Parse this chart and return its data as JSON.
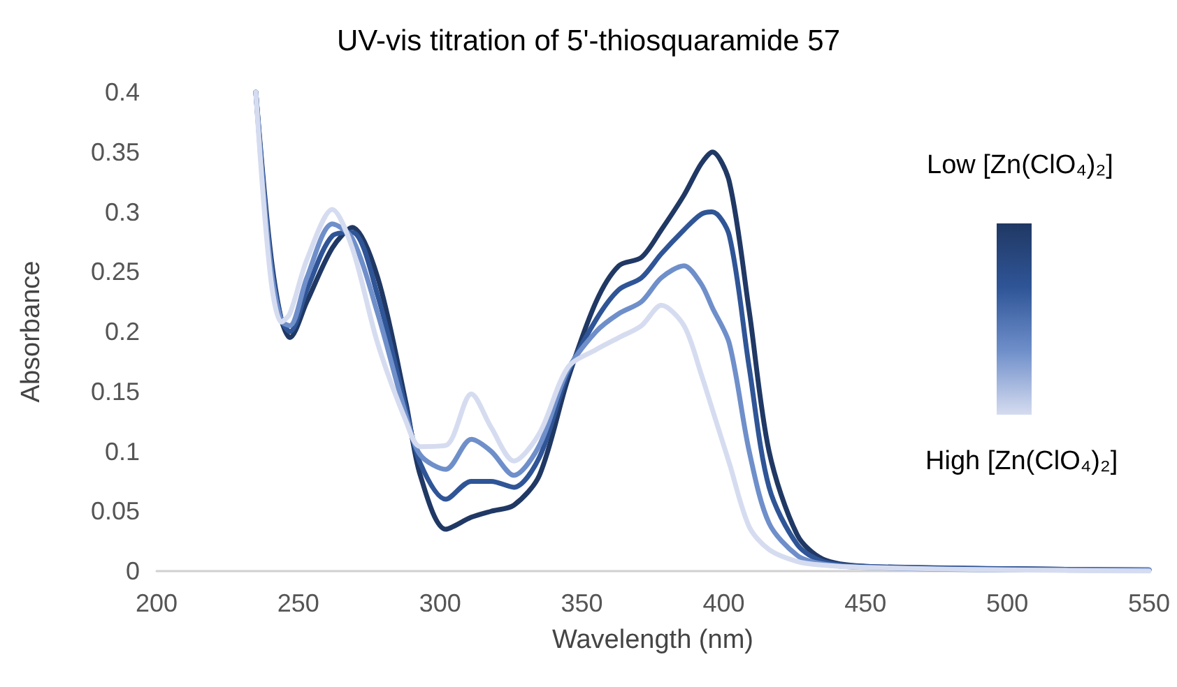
{
  "chart_data": {
    "type": "line",
    "title": "UV-vis titration of 5'-thiosquaramide 57",
    "xlabel": "Wavelength (nm)",
    "ylabel": "Absorbance",
    "x": [
      235,
      240,
      244,
      247,
      253,
      262,
      269,
      278,
      288,
      293,
      302,
      311,
      318,
      326,
      335,
      345,
      355,
      363,
      371,
      378,
      386,
      392,
      396,
      402,
      409,
      416,
      426,
      435,
      450,
      500,
      550
    ],
    "series": [
      {
        "color": "#203864",
        "values": [
          0.4,
          0.27,
          0.21,
          0.195,
          0.225,
          0.27,
          0.287,
          0.245,
          0.14,
          0.08,
          0.035,
          0.045,
          0.05,
          0.055,
          0.08,
          0.16,
          0.225,
          0.255,
          0.262,
          0.285,
          0.314,
          0.34,
          0.35,
          0.325,
          0.217,
          0.1,
          0.03,
          0.01,
          0.004,
          0.002,
          0.001
        ]
      },
      {
        "color": "#2f5597",
        "values": [
          0.4,
          0.265,
          0.21,
          0.2,
          0.235,
          0.28,
          0.283,
          0.23,
          0.135,
          0.09,
          0.06,
          0.075,
          0.075,
          0.07,
          0.095,
          0.165,
          0.21,
          0.235,
          0.245,
          0.265,
          0.285,
          0.298,
          0.3,
          0.28,
          0.17,
          0.07,
          0.022,
          0.008,
          0.004,
          0.002,
          0.001
        ]
      },
      {
        "color": "#6f8fca",
        "values": [
          0.4,
          0.26,
          0.209,
          0.205,
          0.245,
          0.29,
          0.278,
          0.215,
          0.13,
          0.097,
          0.085,
          0.11,
          0.1,
          0.08,
          0.105,
          0.168,
          0.2,
          0.215,
          0.225,
          0.245,
          0.255,
          0.24,
          0.22,
          0.19,
          0.1,
          0.04,
          0.013,
          0.006,
          0.003,
          0.001,
          0.001
        ]
      },
      {
        "color": "#d6dcf0",
        "values": [
          0.4,
          0.25,
          0.208,
          0.215,
          0.26,
          0.302,
          0.27,
          0.19,
          0.125,
          0.104,
          0.105,
          0.148,
          0.12,
          0.092,
          0.115,
          0.17,
          0.185,
          0.195,
          0.205,
          0.222,
          0.205,
          0.165,
          0.135,
          0.09,
          0.037,
          0.018,
          0.008,
          0.005,
          0.003,
          0.001,
          0
        ]
      }
    ],
    "xlim": [
      200,
      550
    ],
    "xticks": [
      200,
      250,
      300,
      350,
      400,
      450,
      500,
      550
    ],
    "ylim": [
      0,
      0.4
    ],
    "yticks": [
      0,
      0.05,
      0.1,
      0.15,
      0.2,
      0.25,
      0.3,
      0.35,
      0.4
    ],
    "grid": false,
    "marker": "none",
    "line_style": "solid",
    "annotations": [
      "Low [Zn(ClO₄)₂]",
      "High [Zn(ClO₄)₂]"
    ]
  }
}
